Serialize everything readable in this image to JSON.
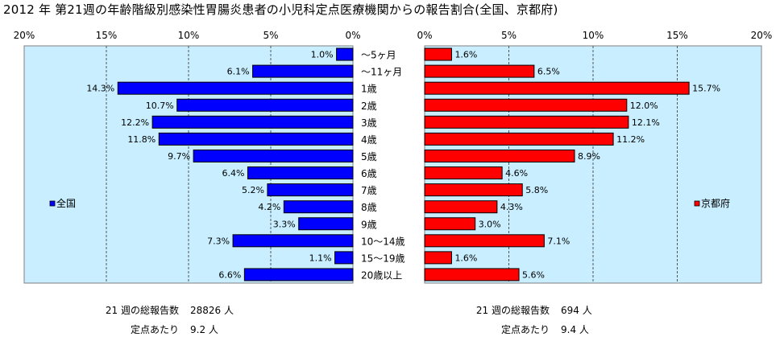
{
  "title": "2012 年 第21週の年齢階級別感染性胃腸炎患者の小児科定点医療機関からの報告割合(全国、京都府)",
  "colors": {
    "zenkoku": "#0000FF",
    "kyoto": "#FF0000",
    "plot_bg": "#C8EEFF"
  },
  "chart_data": [
    {
      "type": "bar",
      "orientation": "horizontal",
      "direction": "right-to-left",
      "legend": "全国",
      "legend_position": "left",
      "xlim": [
        0,
        20
      ],
      "ticks": [
        "20%",
        "15%",
        "10%",
        "5%",
        "0%"
      ],
      "categories": [
        "～5ヶ月",
        "～11ヶ月",
        "1歳",
        "2歳",
        "3歳",
        "4歳",
        "5歳",
        "6歳",
        "7歳",
        "8歳",
        "9歳",
        "10～14歳",
        "15～19歳",
        "20歳以上"
      ],
      "values": [
        1.0,
        6.1,
        14.3,
        10.7,
        12.2,
        11.8,
        9.7,
        6.4,
        5.2,
        4.2,
        3.3,
        7.3,
        1.1,
        6.6
      ],
      "labels": [
        "1.0%",
        "6.1%",
        "14.3%",
        "10.7%",
        "12.2%",
        "11.8%",
        "9.7%",
        "6.4%",
        "5.2%",
        "4.2%",
        "3.3%",
        "7.3%",
        "1.1%",
        "6.6%"
      ],
      "grid": true
    },
    {
      "type": "bar",
      "orientation": "horizontal",
      "direction": "left-to-right",
      "legend": "京都府",
      "legend_position": "right",
      "xlim": [
        0,
        20
      ],
      "ticks": [
        "0%",
        "5%",
        "10%",
        "15%",
        "20%"
      ],
      "categories": [
        "～5ヶ月",
        "～11ヶ月",
        "1歳",
        "2歳",
        "3歳",
        "4歳",
        "5歳",
        "6歳",
        "7歳",
        "8歳",
        "9歳",
        "10～14歳",
        "15～19歳",
        "20歳以上"
      ],
      "values": [
        1.6,
        6.5,
        15.7,
        12.0,
        12.1,
        11.2,
        8.9,
        4.6,
        5.8,
        4.3,
        3.0,
        7.1,
        1.6,
        5.6
      ],
      "labels": [
        "1.6%",
        "6.5%",
        "15.7%",
        "12.0%",
        "12.1%",
        "11.2%",
        "8.9%",
        "4.6%",
        "5.8%",
        "4.3%",
        "3.0%",
        "7.1%",
        "1.6%",
        "5.6%"
      ],
      "grid": true
    }
  ],
  "stats": {
    "zenkoku": {
      "total_label": "21 週の総報告数",
      "total_value": "28826 人",
      "per_label": "定点あたり",
      "per_value": "9.2 人"
    },
    "kyoto": {
      "total_label": "21 週の総報告数",
      "total_value": "694 人",
      "per_label": "定点あたり",
      "per_value": "9.4 人"
    }
  }
}
